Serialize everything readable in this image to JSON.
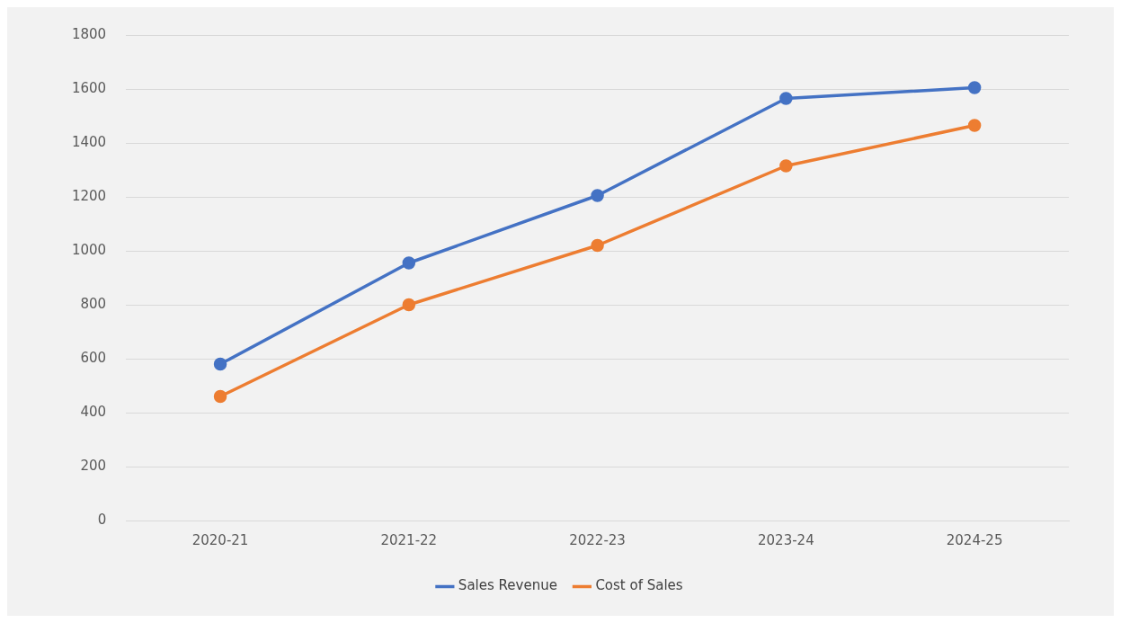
{
  "chart_data": {
    "type": "line",
    "categories": [
      "2020-21",
      "2021-22",
      "2022-23",
      "2023-24",
      "2024-25"
    ],
    "series": [
      {
        "name": "Sales Revenue",
        "color": "#4472c4",
        "values": [
          580,
          955,
          1205,
          1565,
          1605
        ]
      },
      {
        "name": "Cost of Sales",
        "color": "#ed7d31",
        "values": [
          460,
          800,
          1020,
          1315,
          1465
        ]
      }
    ],
    "ylim": [
      0,
      1800
    ],
    "yticks": [
      0,
      200,
      400,
      600,
      800,
      1000,
      1200,
      1400,
      1600,
      1800
    ],
    "grid": "y",
    "legend": "bottom",
    "marker": "circle",
    "line_style": "solid"
  }
}
